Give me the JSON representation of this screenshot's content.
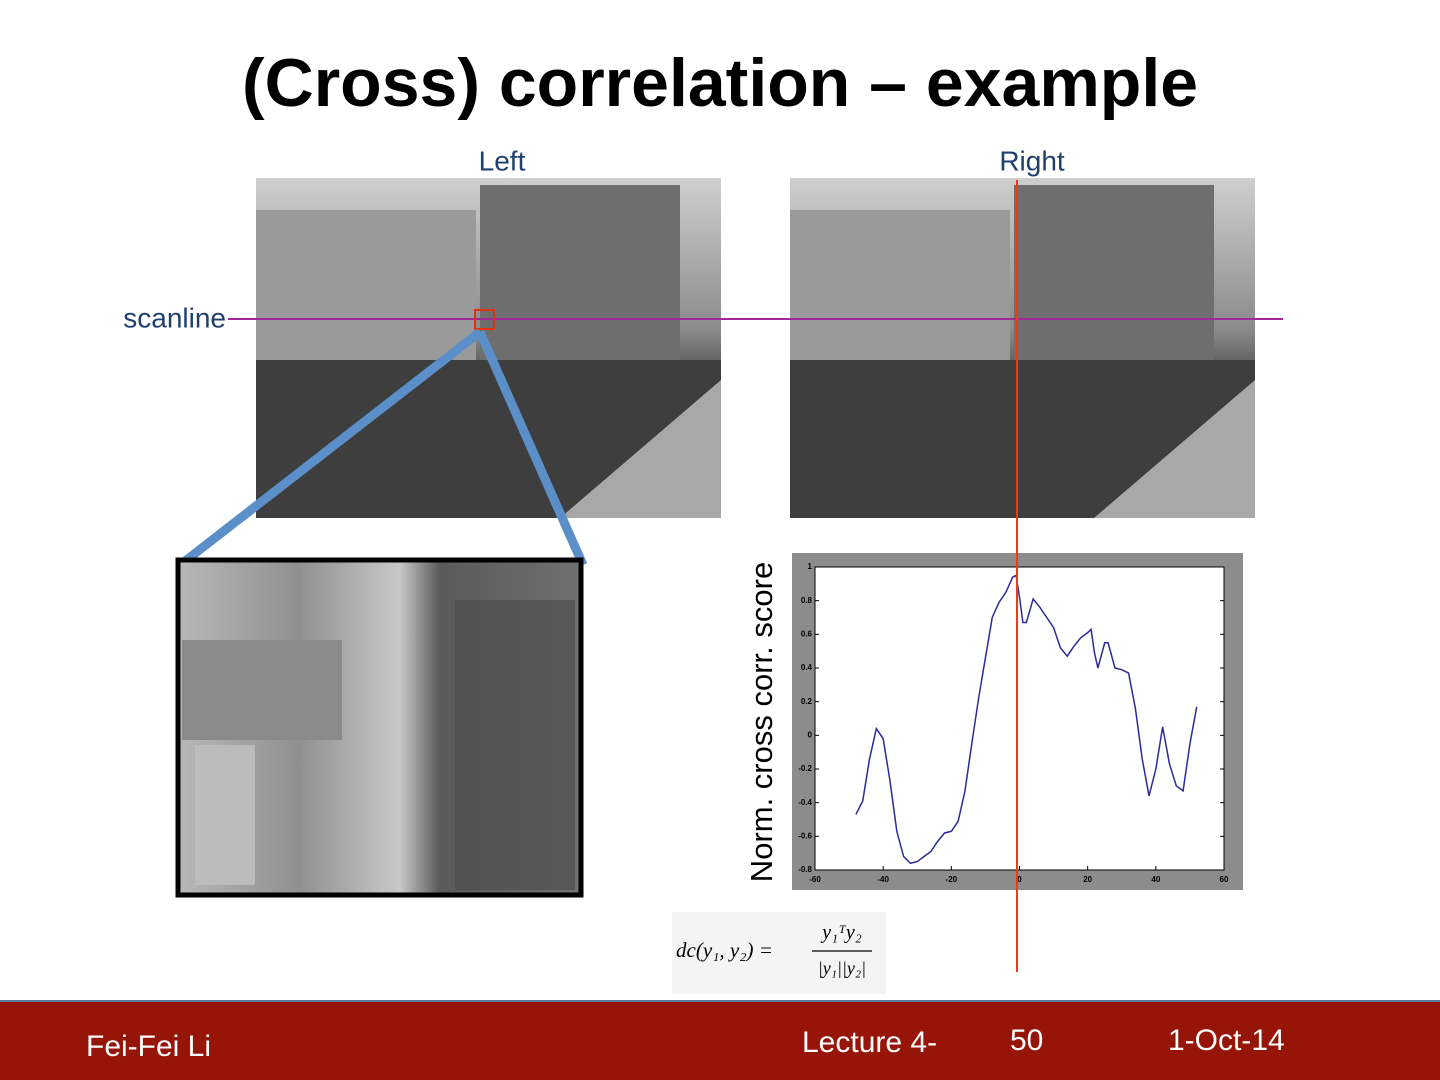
{
  "title": "(Cross) correlation – example",
  "labels": {
    "left": "Left",
    "right": "Right",
    "scanline": "scanline"
  },
  "plot": {
    "type": "line",
    "ylabel": "Norm. cross corr. score",
    "xlim": [
      -60,
      60
    ],
    "ylim": [
      -0.8,
      1
    ],
    "xticks": [
      -60,
      -40,
      -20,
      0,
      20,
      40,
      60
    ],
    "yticks": [
      -0.8,
      -0.6,
      -0.4,
      -0.2,
      0,
      0.2,
      0.4,
      0.6,
      0.8,
      1
    ],
    "color": "#2b2b9a",
    "x": [
      -48,
      -46,
      -44,
      -42,
      -40,
      -38,
      -36,
      -34,
      -32,
      -30,
      -28,
      -26,
      -24,
      -22,
      -20,
      -18,
      -16,
      -14,
      -12,
      -10,
      -8,
      -6,
      -4,
      -2,
      -1,
      0,
      1,
      2,
      4,
      6,
      8,
      10,
      12,
      14,
      16,
      18,
      20,
      21,
      22,
      23,
      25,
      26,
      28,
      30,
      32,
      34,
      36,
      38,
      40,
      42,
      44,
      46,
      48,
      50,
      52
    ],
    "values": [
      -0.47,
      -0.39,
      -0.14,
      0.04,
      -0.02,
      -0.27,
      -0.57,
      -0.72,
      -0.76,
      -0.75,
      -0.72,
      -0.69,
      -0.63,
      -0.58,
      -0.57,
      -0.51,
      -0.33,
      -0.05,
      0.22,
      0.46,
      0.7,
      0.79,
      0.85,
      0.94,
      0.95,
      0.82,
      0.67,
      0.67,
      0.81,
      0.76,
      0.7,
      0.64,
      0.52,
      0.47,
      0.53,
      0.58,
      0.61,
      0.63,
      0.49,
      0.4,
      0.55,
      0.55,
      0.4,
      0.39,
      0.37,
      0.16,
      -0.14,
      -0.36,
      -0.2,
      0.05,
      -0.17,
      -0.3,
      -0.33,
      -0.05,
      0.17
    ]
  },
  "formula": {
    "lhs": "dc(y₁, y₂) =",
    "numerator": "y₁ᵀy₂",
    "denominator": "|y₁||y₂|"
  },
  "footer": {
    "author": "Fei-Fei Li",
    "lecture": "Lecture 4-",
    "page": 50,
    "date": "1-Oct-14"
  }
}
